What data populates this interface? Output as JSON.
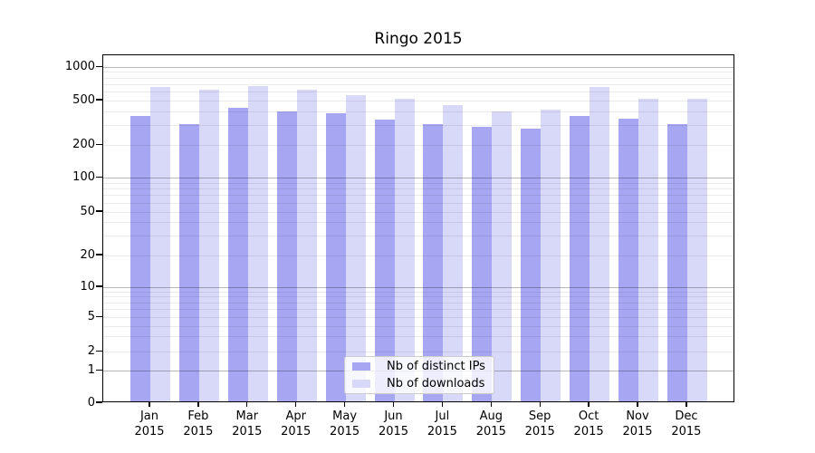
{
  "title": "Ringo 2015",
  "chart_data": {
    "type": "bar",
    "title": "Ringo 2015",
    "categories": [
      "Jan 2015",
      "Feb 2015",
      "Mar 2015",
      "Apr 2015",
      "May 2015",
      "Jun 2015",
      "Jul 2015",
      "Aug 2015",
      "Sep 2015",
      "Oct 2015",
      "Nov 2015",
      "Dec 2015"
    ],
    "series": [
      {
        "name": "Nb of distinct IPs",
        "color": "#a6a6f2",
        "values": [
          355,
          300,
          420,
          390,
          370,
          325,
          300,
          285,
          270,
          350,
          335,
          300
        ]
      },
      {
        "name": "Nb of downloads",
        "color": "#d8d8f9",
        "values": [
          635,
          605,
          655,
          600,
          540,
          500,
          440,
          390,
          400,
          645,
          505,
          500
        ]
      }
    ],
    "yscale": "symlog",
    "ylim": [
      0,
      1280
    ],
    "yticks": [
      0,
      1,
      2,
      5,
      10,
      20,
      50,
      100,
      200,
      500,
      1000
    ],
    "grid": {
      "major": [
        1,
        10,
        100,
        1000
      ],
      "minor": [
        2,
        3,
        4,
        5,
        6,
        7,
        8,
        9,
        20,
        30,
        40,
        50,
        60,
        70,
        80,
        90,
        200,
        300,
        400,
        500,
        600,
        700,
        800,
        900
      ]
    },
    "legend_position": "lower center",
    "xlabel": "",
    "ylabel": ""
  }
}
